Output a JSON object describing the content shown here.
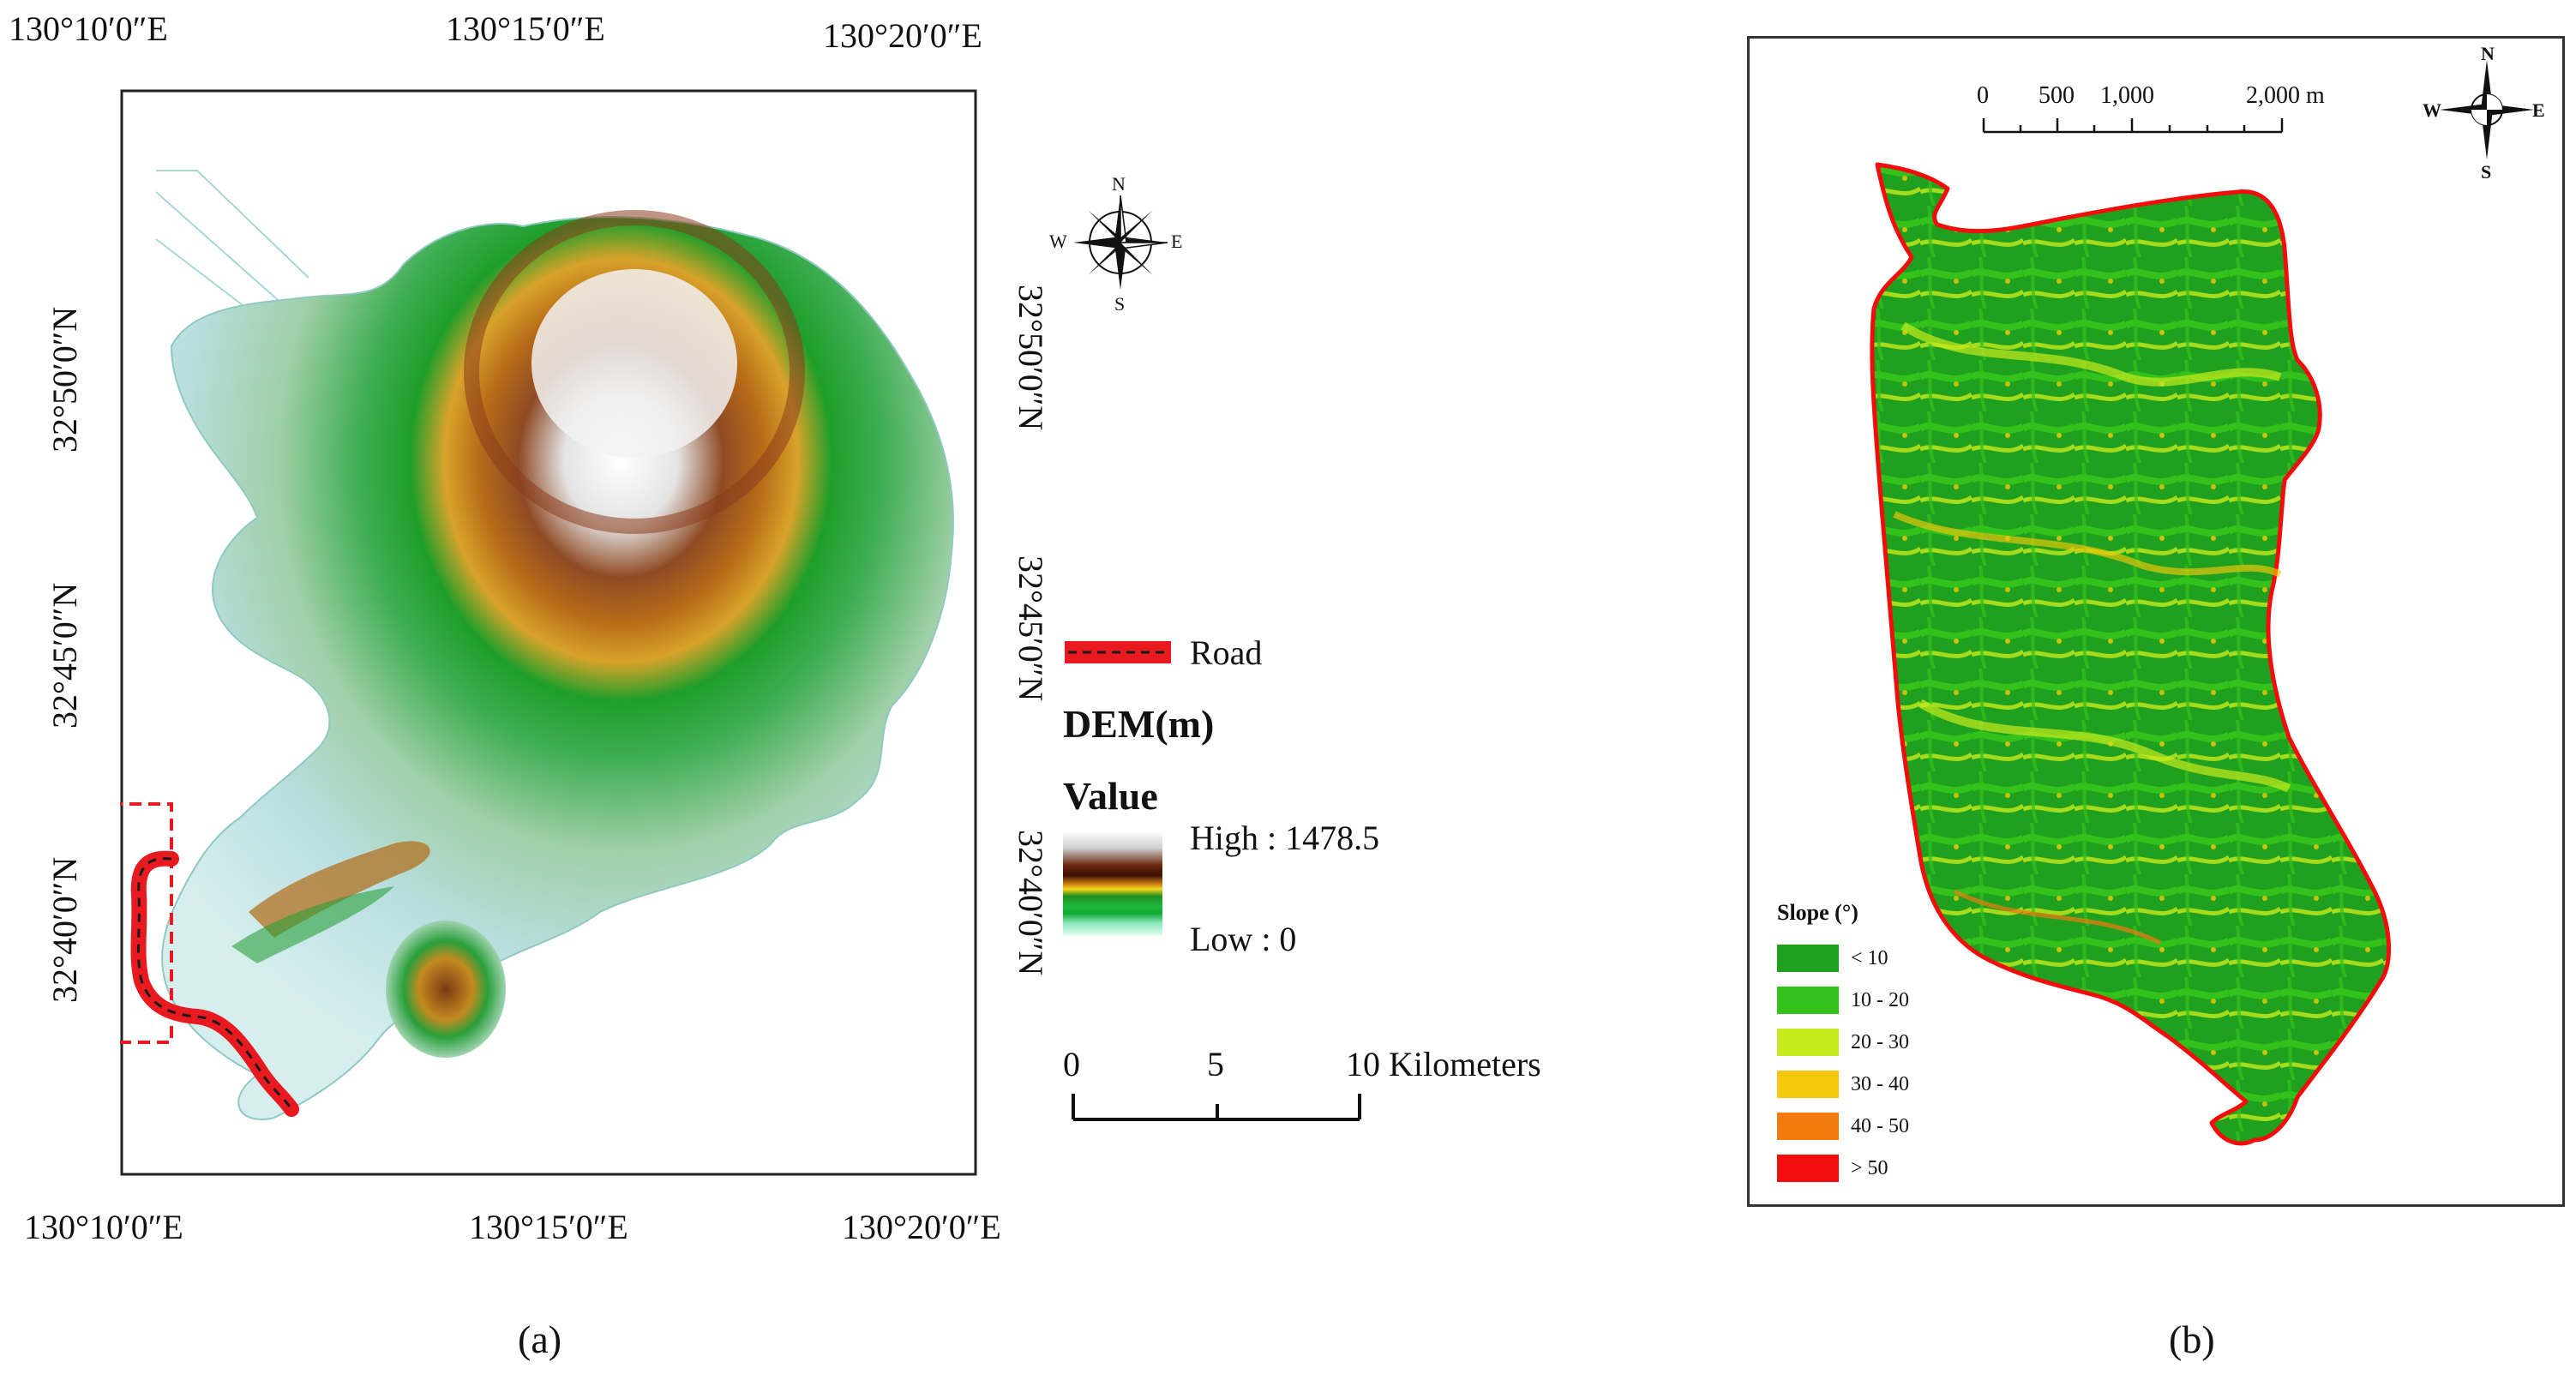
{
  "panel_a": {
    "caption": "(a)",
    "top_ticks": [
      "130°10′0″E",
      "130°15′0″E",
      "130°20′0″E"
    ],
    "bottom_ticks": [
      "130°10′0″E",
      "130°15′0″E",
      "130°20′0″E"
    ],
    "left_ticks": [
      "32°50′0″N",
      "32°45′0″N",
      "32°40′0″N"
    ],
    "right_ticks": [
      "32°50′0″N",
      "32°45′0″N",
      "32°40′0″N"
    ],
    "north_arrow": {
      "n": "N",
      "s": "S",
      "e": "E",
      "w": "W"
    },
    "legend": {
      "road_label": "Road",
      "dem_title": "DEM(m)",
      "value_title": "Value",
      "high_label": "High : 1478.5",
      "low_label": "Low : 0"
    },
    "scale_bar": {
      "ticks": [
        "0",
        "5",
        "10 Kilometers"
      ]
    }
  },
  "panel_b": {
    "caption": "(b)",
    "scale_bar": {
      "ticks": [
        "0",
        "500",
        "1,000",
        "2,000 m"
      ]
    },
    "north_arrow": {
      "n": "N",
      "s": "S",
      "e": "E",
      "w": "W"
    },
    "legend": {
      "title": "Slope (°)",
      "classes": [
        {
          "label": "< 10",
          "color": "#1fa01f"
        },
        {
          "label": "10 - 20",
          "color": "#33c21b"
        },
        {
          "label": "20 - 30",
          "color": "#c6ea1c"
        },
        {
          "label": "30 - 40",
          "color": "#f5c80a"
        },
        {
          "label": "40 - 50",
          "color": "#f27a0e"
        },
        {
          "label": "> 50",
          "color": "#f20c0c"
        }
      ]
    }
  },
  "colors": {
    "road": "#e8191f",
    "dem_ramp": [
      "#ffffff",
      "#d8d8d8",
      "#8a3c1c",
      "#5a1a0a",
      "#c98a1a",
      "#f2c21a",
      "#1f9e2a",
      "#2cc24a",
      "#9ee8c8",
      "#e8fff4"
    ]
  }
}
